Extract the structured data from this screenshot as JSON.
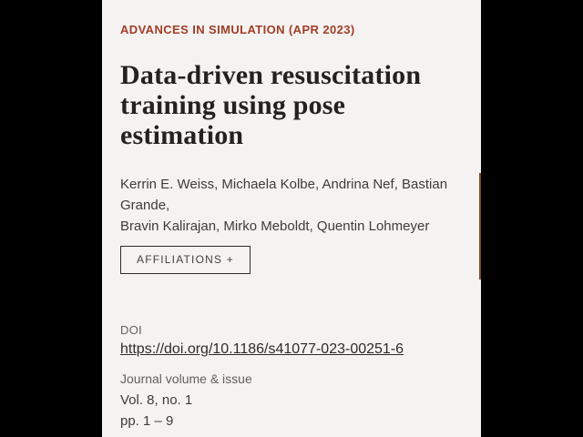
{
  "colors": {
    "letterbox": "#000000",
    "panel_background": "#f5f3f1",
    "accent_red": "#a23d28",
    "title_text": "#242120",
    "body_text": "#3e3b39",
    "muted_text": "#625f5c",
    "scrollbar_thumb": "#7a4a2b"
  },
  "article": {
    "eyebrow": "ADVANCES IN SIMULATION (APR 2023)",
    "title": "Data-driven resuscitation\ntraining using pose\nestimation",
    "authors": "Kerrin E. Weiss, Michaela Kolbe, Andrina Nef, Bastian Grande,\nBravin Kalirajan, Mirko Meboldt, Quentin Lohmeyer",
    "affiliations_button_label": "AFFILIATIONS +"
  },
  "doi": {
    "label": "DOI",
    "url": "https://doi.org/10.1186/s41077-023-00251-6"
  },
  "issue": {
    "label": "Journal volume & issue",
    "volume_line": "Vol. 8, no. 1",
    "pages_line": "pp. 1 – 9",
    "values": "Vol. 8, no. 1\npp. 1 – 9"
  }
}
